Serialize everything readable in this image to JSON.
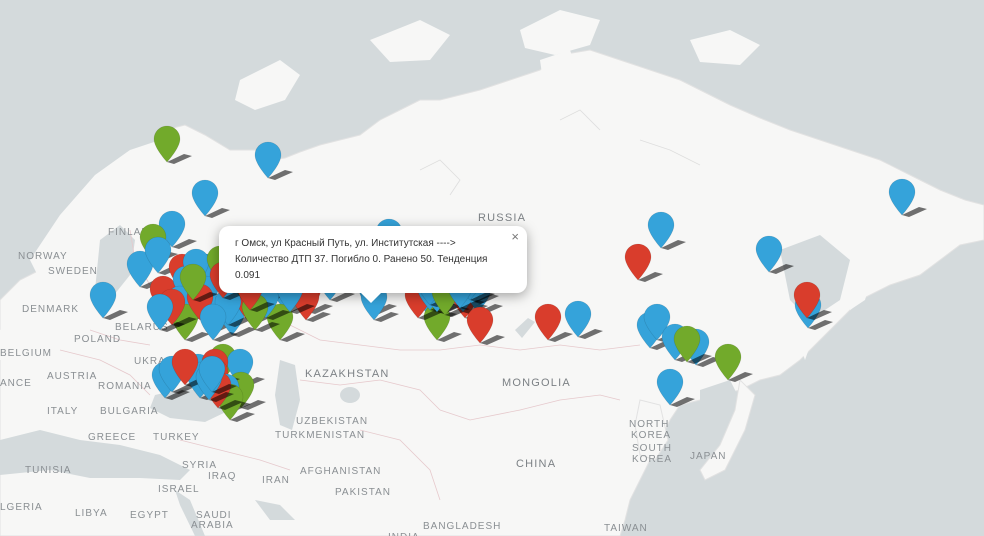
{
  "map": {
    "country_labels": [
      {
        "text": "RUSSIA"
      },
      {
        "text": "KAZAKHSTAN"
      },
      {
        "text": "MONGOLIA"
      },
      {
        "text": "CHINA"
      },
      {
        "text": "FINLAND"
      },
      {
        "text": "NORWAY"
      },
      {
        "text": "SWEDEN"
      },
      {
        "text": "DENMARK"
      },
      {
        "text": "BELARUS"
      },
      {
        "text": "POLAND"
      },
      {
        "text": "BELGIUM"
      },
      {
        "text": "UKRAINE"
      },
      {
        "text": "AUSTRIA"
      },
      {
        "text": "ANCE"
      },
      {
        "text": "ROMANIA"
      },
      {
        "text": "ITALY"
      },
      {
        "text": "BULGARIA"
      },
      {
        "text": "GREECE"
      },
      {
        "text": "TURKEY"
      },
      {
        "text": "UZBEKISTAN"
      },
      {
        "text": "TURKMENISTAN"
      },
      {
        "text": "AFGHANISTAN"
      },
      {
        "text": "PAKISTAN"
      },
      {
        "text": "SYRIA"
      },
      {
        "text": "IRAQ"
      },
      {
        "text": "IRAN"
      },
      {
        "text": "ISRAEL"
      },
      {
        "text": "TUNISIA"
      },
      {
        "text": "LGERIA"
      },
      {
        "text": "LIBYA"
      },
      {
        "text": "EGYPT"
      },
      {
        "text": "SAUDI"
      },
      {
        "text": "ARABIA"
      },
      {
        "text": "NORTH"
      },
      {
        "text": "KOREA"
      },
      {
        "text": "SOUTH"
      },
      {
        "text": "KOREA"
      },
      {
        "text": "JAPAN"
      },
      {
        "text": "BANGLADESH"
      },
      {
        "text": "TAIWAN"
      },
      {
        "text": "INDIA"
      }
    ],
    "colors": {
      "blue": "#35a3da",
      "red": "#d93d2c",
      "green": "#72aa2b",
      "shadow": "rgba(0,0,0,0.55)"
    },
    "markers": [
      {
        "c": "green"
      },
      {
        "c": "blue"
      },
      {
        "c": "blue"
      },
      {
        "c": "blue"
      },
      {
        "c": "blue"
      },
      {
        "c": "green"
      },
      {
        "c": "blue"
      },
      {
        "c": "blue"
      },
      {
        "c": "blue"
      },
      {
        "c": "red"
      },
      {
        "c": "blue"
      },
      {
        "c": "blue"
      },
      {
        "c": "red"
      },
      {
        "c": "blue"
      },
      {
        "c": "red"
      },
      {
        "c": "blue"
      },
      {
        "c": "blue"
      },
      {
        "c": "green"
      },
      {
        "c": "red"
      },
      {
        "c": "blue"
      },
      {
        "c": "blue"
      },
      {
        "c": "green"
      },
      {
        "c": "blue"
      },
      {
        "c": "blue"
      },
      {
        "c": "red"
      },
      {
        "c": "blue"
      },
      {
        "c": "green"
      },
      {
        "c": "blue"
      },
      {
        "c": "blue"
      },
      {
        "c": "blue"
      },
      {
        "c": "red"
      },
      {
        "c": "blue"
      },
      {
        "c": "blue"
      },
      {
        "c": "blue"
      },
      {
        "c": "green"
      },
      {
        "c": "blue"
      },
      {
        "c": "red"
      },
      {
        "c": "red"
      },
      {
        "c": "blue"
      },
      {
        "c": "blue"
      },
      {
        "c": "green"
      },
      {
        "c": "green"
      },
      {
        "c": "blue"
      },
      {
        "c": "red"
      },
      {
        "c": "red"
      },
      {
        "c": "blue"
      },
      {
        "c": "blue"
      },
      {
        "c": "green"
      },
      {
        "c": "red"
      },
      {
        "c": "green"
      },
      {
        "c": "blue"
      },
      {
        "c": "red"
      },
      {
        "c": "blue"
      },
      {
        "c": "red"
      },
      {
        "c": "blue"
      },
      {
        "c": "blue"
      },
      {
        "c": "blue"
      },
      {
        "c": "blue"
      },
      {
        "c": "blue"
      },
      {
        "c": "blue"
      },
      {
        "c": "blue"
      },
      {
        "c": "blue"
      },
      {
        "c": "green"
      },
      {
        "c": "green"
      },
      {
        "c": "blue"
      },
      {
        "c": "blue"
      },
      {
        "c": "red"
      },
      {
        "c": "blue"
      },
      {
        "c": "blue"
      },
      {
        "c": "blue"
      },
      {
        "c": "green"
      },
      {
        "c": "blue"
      },
      {
        "c": "green"
      },
      {
        "c": "red"
      },
      {
        "c": "blue"
      },
      {
        "c": "red"
      },
      {
        "c": "red"
      },
      {
        "c": "blue"
      },
      {
        "c": "green"
      },
      {
        "c": "red"
      },
      {
        "c": "blue"
      },
      {
        "c": "blue"
      },
      {
        "c": "red"
      },
      {
        "c": "red"
      },
      {
        "c": "blue"
      },
      {
        "c": "blue"
      },
      {
        "c": "blue"
      },
      {
        "c": "blue"
      },
      {
        "c": "green"
      },
      {
        "c": "blue"
      },
      {
        "c": "green"
      },
      {
        "c": "blue"
      },
      {
        "c": "red"
      },
      {
        "c": "blue"
      }
    ]
  },
  "popup": {
    "text": "г Омск, ул Красный Путь, ул. Институтская ----> Количество ДТП 37. Погибло 0. Ранено 50. Тенденция 0.091",
    "close_label": "×"
  }
}
